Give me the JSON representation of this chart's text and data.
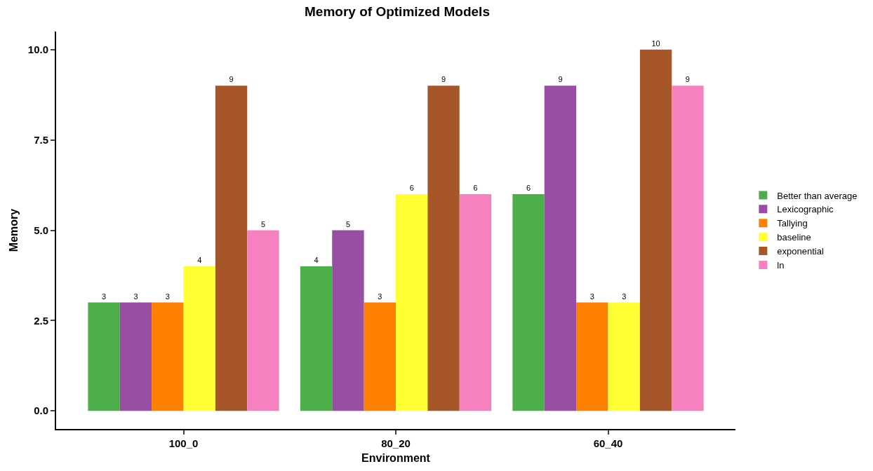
{
  "chart_data": {
    "type": "bar",
    "title": "Memory of Optimized Models",
    "xlabel": "Environment",
    "ylabel": "Memory",
    "categories": [
      "100_0",
      "80_20",
      "60_40"
    ],
    "series": [
      {
        "name": "Better than average",
        "color": "#4daf4a",
        "values": [
          3,
          4,
          6
        ]
      },
      {
        "name": "Lexicographic",
        "color": "#984ea3",
        "values": [
          3,
          5,
          9
        ]
      },
      {
        "name": "Tallying",
        "color": "#ff7f00",
        "values": [
          3,
          3,
          3
        ]
      },
      {
        "name": "baseline",
        "color": "#ffff33",
        "values": [
          4,
          6,
          3
        ]
      },
      {
        "name": "exponential",
        "color": "#a65628",
        "values": [
          9,
          9,
          10
        ]
      },
      {
        "name": "ln",
        "color": "#f781bf",
        "values": [
          5,
          6,
          9
        ]
      }
    ],
    "ylim": [
      -0.5,
      10.5
    ],
    "yticks": [
      {
        "value": 0,
        "label": "0.0"
      },
      {
        "value": 2.5,
        "label": "2.5"
      },
      {
        "value": 5,
        "label": "5.0"
      },
      {
        "value": 7.5,
        "label": "7.5"
      },
      {
        "value": 10,
        "label": "10.0"
      }
    ],
    "data_labels": true,
    "legend": "right"
  }
}
